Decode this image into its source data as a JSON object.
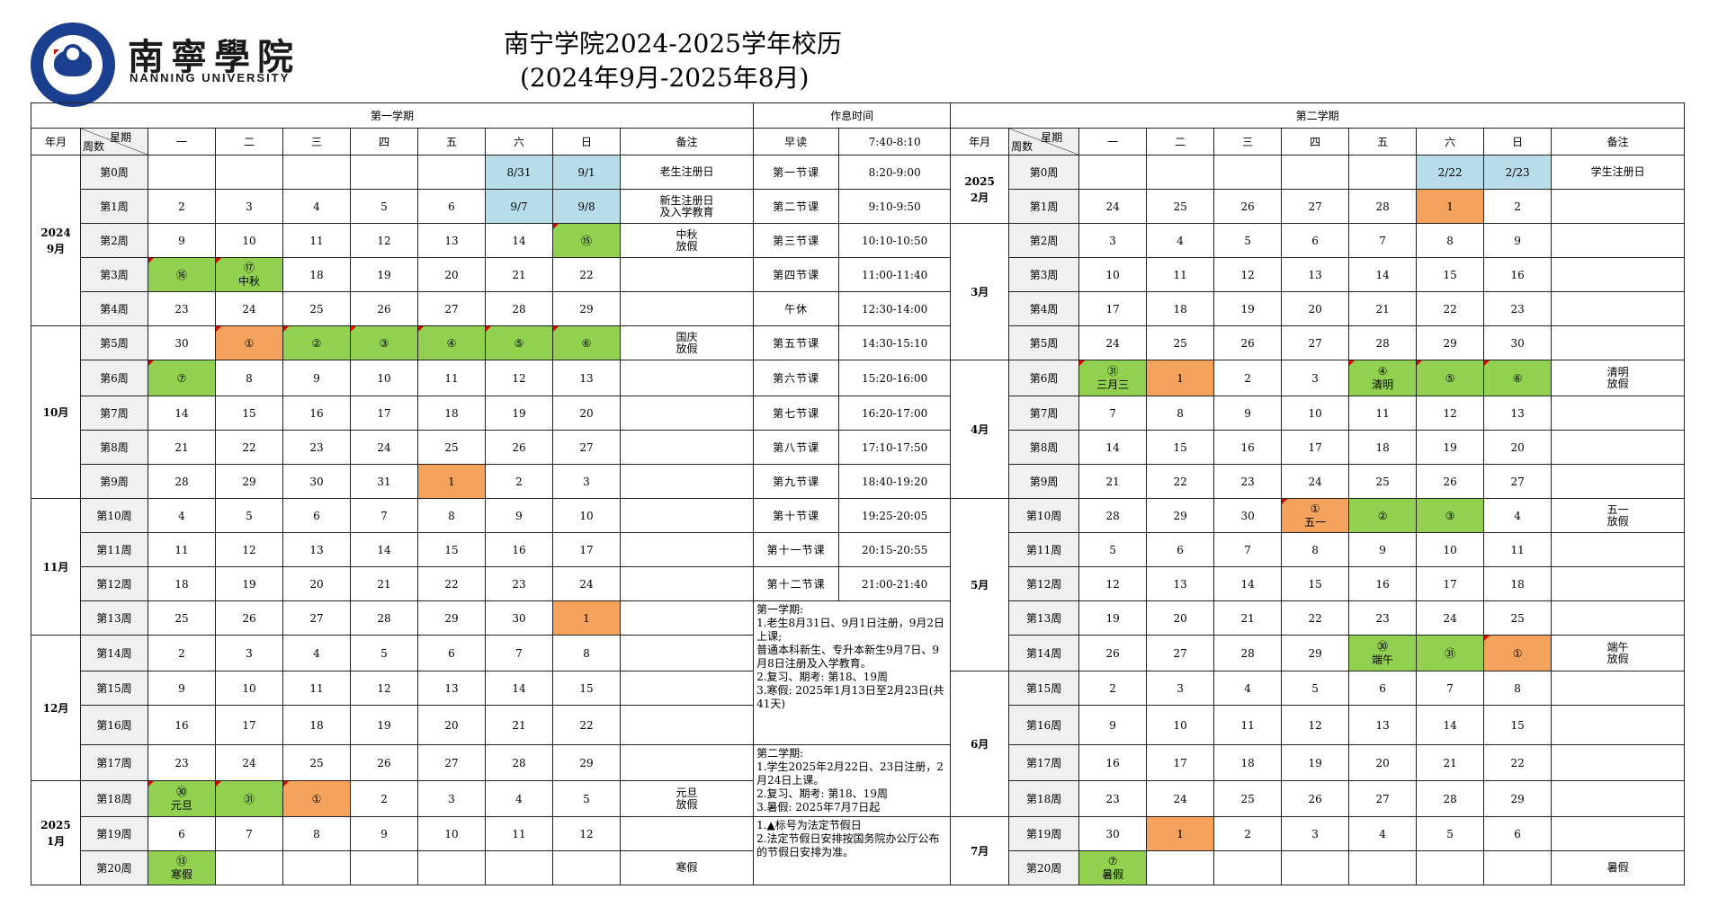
{
  "header": {
    "logo_cn": "南寧學院",
    "logo_en": "NANNING UNIVERSITY",
    "title_line1": "南宁学院2024-2025学年校历",
    "title_line2": "(2024年9月-2025年8月)"
  },
  "labels": {
    "sem1": "第一学期",
    "sem2": "第二学期",
    "schedule": "作息时间",
    "yearmonth": "年月",
    "weekday": "星期",
    "weeknum": "周数",
    "days": [
      "一",
      "二",
      "三",
      "四",
      "五",
      "六",
      "日"
    ],
    "remark": "备注"
  },
  "sem1_rows": [
    {
      "wk": "第0周",
      "d": [
        "",
        "",
        "",
        "",
        "",
        "8/31",
        "9/1"
      ],
      "note": "老生注册日"
    },
    {
      "wk": "第1周",
      "d": [
        "2",
        "3",
        "4",
        "5",
        "6",
        "9/7",
        "9/8"
      ],
      "note": "新生注册日\n及入学教育"
    },
    {
      "wk": "第2周",
      "d": [
        "9",
        "10",
        "11",
        "12",
        "13",
        "14",
        "⑮"
      ],
      "note": "中秋\n放假"
    },
    {
      "wk": "第3周",
      "d": [
        "⑯",
        "⑰\n中秋",
        "18",
        "19",
        "20",
        "21",
        "22"
      ],
      "note": ""
    },
    {
      "wk": "第4周",
      "d": [
        "23",
        "24",
        "25",
        "26",
        "27",
        "28",
        "29"
      ],
      "note": ""
    },
    {
      "wk": "第5周",
      "d": [
        "30",
        "①",
        "②",
        "③",
        "④",
        "⑤",
        "⑥"
      ],
      "note": "国庆\n放假"
    },
    {
      "wk": "第6周",
      "d": [
        "⑦",
        "8",
        "9",
        "10",
        "11",
        "12",
        "13"
      ],
      "note": ""
    },
    {
      "wk": "第7周",
      "d": [
        "14",
        "15",
        "16",
        "17",
        "18",
        "19",
        "20"
      ],
      "note": ""
    },
    {
      "wk": "第8周",
      "d": [
        "21",
        "22",
        "23",
        "24",
        "25",
        "26",
        "27"
      ],
      "note": ""
    },
    {
      "wk": "第9周",
      "d": [
        "28",
        "29",
        "30",
        "31",
        "1",
        "2",
        "3"
      ],
      "note": ""
    },
    {
      "wk": "第10周",
      "d": [
        "4",
        "5",
        "6",
        "7",
        "8",
        "9",
        "10"
      ],
      "note": ""
    },
    {
      "wk": "第11周",
      "d": [
        "11",
        "12",
        "13",
        "14",
        "15",
        "16",
        "17"
      ],
      "note": ""
    },
    {
      "wk": "第12周",
      "d": [
        "18",
        "19",
        "20",
        "21",
        "22",
        "23",
        "24"
      ],
      "note": ""
    },
    {
      "wk": "第13周",
      "d": [
        "25",
        "26",
        "27",
        "28",
        "29",
        "30",
        "1"
      ],
      "note": ""
    },
    {
      "wk": "第14周",
      "d": [
        "2",
        "3",
        "4",
        "5",
        "6",
        "7",
        "8"
      ],
      "note": ""
    },
    {
      "wk": "第15周",
      "d": [
        "9",
        "10",
        "11",
        "12",
        "13",
        "14",
        "15"
      ],
      "note": ""
    },
    {
      "wk": "第16周",
      "d": [
        "16",
        "17",
        "18",
        "19",
        "20",
        "21",
        "22"
      ],
      "note": ""
    },
    {
      "wk": "第17周",
      "d": [
        "23",
        "24",
        "25",
        "26",
        "27",
        "28",
        "29"
      ],
      "note": ""
    },
    {
      "wk": "第18周",
      "d": [
        "㉚\n元旦",
        "㉛",
        "①",
        "2",
        "3",
        "4",
        "5"
      ],
      "note": "元旦\n放假"
    },
    {
      "wk": "第19周",
      "d": [
        "6",
        "7",
        "8",
        "9",
        "10",
        "11",
        "12"
      ],
      "note": ""
    },
    {
      "wk": "第20周",
      "d": [
        "⑬\n寒假",
        "",
        "",
        "",
        "",
        "",
        ""
      ],
      "note": "寒假"
    }
  ],
  "sem1_months": [
    {
      "label": "2024\n9月",
      "span": 5
    },
    {
      "label": "10月",
      "span": 5
    },
    {
      "label": "11月",
      "span": 4
    },
    {
      "label": "12月",
      "span": 4
    },
    {
      "label": "2025\n1月",
      "span": 3
    }
  ],
  "schedule": [
    {
      "name": "早读",
      "time": "7:40-8:10"
    },
    {
      "name": "第一节课",
      "time": "8:20-9:00"
    },
    {
      "name": "第二节课",
      "time": "9:10-9:50"
    },
    {
      "name": "第三节课",
      "time": "10:10-10:50"
    },
    {
      "name": "第四节课",
      "time": "11:00-11:40"
    },
    {
      "name": "午休",
      "time": "12:30-14:00"
    },
    {
      "name": "第五节课",
      "time": "14:30-15:10"
    },
    {
      "name": "第六节课",
      "time": "15:20-16:00"
    },
    {
      "name": "第七节课",
      "time": "16:20-17:00"
    },
    {
      "name": "第八节课",
      "time": "17:10-17:50"
    },
    {
      "name": "第九节课",
      "time": "18:40-19:20"
    },
    {
      "name": "第十节课",
      "time": "19:25-20:05"
    },
    {
      "name": "第十一节课",
      "time": "20:15-20:55"
    },
    {
      "name": "第十二节课",
      "time": "21:00-21:40"
    }
  ],
  "memo1": "第一学期:\n1.老生8月31日、9月1日注册，9月2日上课;\n  普通本科新生、专升本新生9月7日、9月8日注册及入学教育。\n2.复习、期考: 第18、19周\n3.寒假: 2025年1月13日至2月23日(共41天)",
  "memo2": "第二学期:\n1.学生2025年2月22日、23日注册，2月24日上课。\n2.复习、期考: 第18、19周\n3.暑假: 2025年7月7日起",
  "memo3": "1.▲标号为法定节假日\n2.法定节假日安排按国务院办公厅公布的节假日安排为准。",
  "sem2_rows": [
    {
      "wk": "第0周",
      "d": [
        "",
        "",
        "",
        "",
        "",
        "2/22",
        "2/23"
      ],
      "note": "学生注册日"
    },
    {
      "wk": "第1周",
      "d": [
        "24",
        "25",
        "26",
        "27",
        "28",
        "1",
        "2"
      ],
      "note": ""
    },
    {
      "wk": "第2周",
      "d": [
        "3",
        "4",
        "5",
        "6",
        "7",
        "8",
        "9"
      ],
      "note": ""
    },
    {
      "wk": "第3周",
      "d": [
        "10",
        "11",
        "12",
        "13",
        "14",
        "15",
        "16"
      ],
      "note": ""
    },
    {
      "wk": "第4周",
      "d": [
        "17",
        "18",
        "19",
        "20",
        "21",
        "22",
        "23"
      ],
      "note": ""
    },
    {
      "wk": "第5周",
      "d": [
        "24",
        "25",
        "26",
        "27",
        "28",
        "29",
        "30"
      ],
      "note": ""
    },
    {
      "wk": "第6周",
      "d": [
        "㉛\n三月三",
        "1",
        "2",
        "3",
        "④\n清明",
        "⑤",
        "⑥"
      ],
      "note": "清明\n放假"
    },
    {
      "wk": "第7周",
      "d": [
        "7",
        "8",
        "9",
        "10",
        "11",
        "12",
        "13"
      ],
      "note": ""
    },
    {
      "wk": "第8周",
      "d": [
        "14",
        "15",
        "16",
        "17",
        "18",
        "19",
        "20"
      ],
      "note": ""
    },
    {
      "wk": "第9周",
      "d": [
        "21",
        "22",
        "23",
        "24",
        "25",
        "26",
        "27"
      ],
      "note": ""
    },
    {
      "wk": "第10周",
      "d": [
        "28",
        "29",
        "30",
        "①\n五一",
        "②",
        "③",
        "4"
      ],
      "note": "五一\n放假"
    },
    {
      "wk": "第11周",
      "d": [
        "5",
        "6",
        "7",
        "8",
        "9",
        "10",
        "11"
      ],
      "note": ""
    },
    {
      "wk": "第12周",
      "d": [
        "12",
        "13",
        "14",
        "15",
        "16",
        "17",
        "18"
      ],
      "note": ""
    },
    {
      "wk": "第13周",
      "d": [
        "19",
        "20",
        "21",
        "22",
        "23",
        "24",
        "25"
      ],
      "note": ""
    },
    {
      "wk": "第14周",
      "d": [
        "26",
        "27",
        "28",
        "29",
        "㉚\n端午",
        "㉛",
        "①"
      ],
      "note": "端午\n放假"
    },
    {
      "wk": "第15周",
      "d": [
        "2",
        "3",
        "4",
        "5",
        "6",
        "7",
        "8"
      ],
      "note": ""
    },
    {
      "wk": "第16周",
      "d": [
        "9",
        "10",
        "11",
        "12",
        "13",
        "14",
        "15"
      ],
      "note": ""
    },
    {
      "wk": "第17周",
      "d": [
        "16",
        "17",
        "18",
        "19",
        "20",
        "21",
        "22"
      ],
      "note": ""
    },
    {
      "wk": "第18周",
      "d": [
        "23",
        "24",
        "25",
        "26",
        "27",
        "28",
        "29"
      ],
      "note": ""
    },
    {
      "wk": "第19周",
      "d": [
        "30",
        "1",
        "2",
        "3",
        "4",
        "5",
        "6"
      ],
      "note": ""
    },
    {
      "wk": "第20周",
      "d": [
        "⑦\n暑假",
        "",
        "",
        "",
        "",
        "",
        ""
      ],
      "note": "暑假"
    }
  ],
  "sem2_months": [
    {
      "label": "2025\n2月",
      "span": 2
    },
    {
      "label": "3月",
      "span": 4
    },
    {
      "label": "4月",
      "span": 4
    },
    {
      "label": "5月",
      "span": 5
    },
    {
      "label": "6月",
      "span": 4
    },
    {
      "label": "7月",
      "span": 2
    }
  ],
  "colors": {
    "holiday_green": "#92d050",
    "orange": "#f4a25c",
    "register_blue": "#b7dde8"
  }
}
